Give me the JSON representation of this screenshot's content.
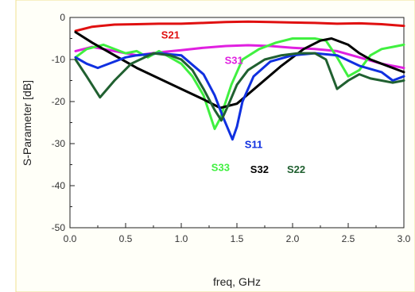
{
  "chart_data": {
    "type": "line",
    "xlabel": "freq, GHz",
    "ylabel": "S-Parameter [dB]",
    "xlim": [
      0,
      3.0
    ],
    "ylim": [
      -50,
      0
    ],
    "x_ticks": [
      0.0,
      0.5,
      1.0,
      1.5,
      2.0,
      2.5,
      3.0
    ],
    "x_tick_labels": [
      "0.0",
      "0.5",
      "1.0",
      "1.5",
      "2.0",
      "2.5",
      "3.0"
    ],
    "y_ticks": [
      0,
      -10,
      -20,
      -30,
      -40,
      -50
    ],
    "y_tick_labels": [
      "0",
      "-10",
      "-20",
      "-30",
      "-40",
      "-50"
    ],
    "grid": false,
    "legend": "inline labels",
    "series": [
      {
        "name": "S21",
        "color": "#e01010",
        "x": [
          0.05,
          0.2,
          0.4,
          0.6,
          0.8,
          1.0,
          1.2,
          1.4,
          1.6,
          1.8,
          2.0,
          2.2,
          2.4,
          2.6,
          2.8,
          3.0
        ],
        "y": [
          -3.2,
          -2.2,
          -1.7,
          -1.6,
          -1.5,
          -1.5,
          -1.3,
          -1.1,
          -1.0,
          -1.1,
          -1.2,
          -1.3,
          -1.5,
          -1.4,
          -1.6,
          -2.0
        ]
      },
      {
        "name": "S31",
        "color": "#e020e0",
        "x": [
          0.05,
          0.2,
          0.4,
          0.6,
          0.8,
          1.0,
          1.2,
          1.4,
          1.6,
          1.8,
          2.0,
          2.2,
          2.4,
          2.6,
          2.8,
          3.0
        ],
        "y": [
          -8.0,
          -7.0,
          -8.0,
          -9.0,
          -8.3,
          -7.8,
          -7.2,
          -6.8,
          -6.6,
          -6.8,
          -7.2,
          -7.5,
          -8.0,
          -9.5,
          -11.0,
          -12.0
        ]
      },
      {
        "name": "S33",
        "color": "#40f040",
        "x": [
          0.05,
          0.15,
          0.3,
          0.5,
          0.6,
          0.7,
          0.8,
          0.9,
          1.0,
          1.1,
          1.2,
          1.3,
          1.35,
          1.45,
          1.55,
          1.7,
          1.85,
          2.0,
          2.2,
          2.3,
          2.4,
          2.5,
          2.6,
          2.7,
          2.8,
          2.9,
          3.0
        ],
        "y": [
          -9.5,
          -7.5,
          -6.5,
          -8.5,
          -8.0,
          -9.5,
          -8.0,
          -9.5,
          -11.0,
          -14.0,
          -18.5,
          -26.5,
          -24.0,
          -16.0,
          -10.0,
          -7.5,
          -6.0,
          -5.0,
          -5.0,
          -5.5,
          -9.5,
          -14.0,
          -12.5,
          -9.0,
          -7.5,
          -7.0,
          -6.5
        ]
      },
      {
        "name": "S32",
        "color": "#000000",
        "x": [
          0.05,
          0.2,
          0.4,
          0.6,
          0.8,
          1.0,
          1.2,
          1.35,
          1.5,
          1.7,
          1.9,
          2.1,
          2.25,
          2.35,
          2.5,
          2.6,
          2.7,
          2.8,
          2.9,
          3.0
        ],
        "y": [
          -3.5,
          -6.0,
          -9.0,
          -12.0,
          -14.5,
          -17.0,
          -19.5,
          -21.5,
          -20.5,
          -16.0,
          -11.5,
          -7.5,
          -5.5,
          -5.0,
          -6.5,
          -8.5,
          -10.0,
          -11.0,
          -12.0,
          -13.0
        ]
      },
      {
        "name": "S11",
        "color": "#1030e0",
        "x": [
          0.05,
          0.15,
          0.25,
          0.4,
          0.5,
          0.6,
          0.8,
          1.0,
          1.2,
          1.3,
          1.38,
          1.46,
          1.5,
          1.55,
          1.65,
          1.8,
          2.0,
          2.2,
          2.4,
          2.6,
          2.8,
          2.9,
          3.0
        ],
        "y": [
          -9.5,
          -11.0,
          -12.0,
          -10.5,
          -9.5,
          -9.0,
          -8.5,
          -9.0,
          -13.5,
          -18.5,
          -24.0,
          -29.0,
          -26.0,
          -20.0,
          -14.0,
          -10.5,
          -9.0,
          -8.5,
          -9.0,
          -11.5,
          -13.0,
          -15.0,
          -14.0
        ]
      },
      {
        "name": "S22",
        "color": "#206030",
        "x": [
          0.05,
          0.15,
          0.27,
          0.4,
          0.55,
          0.75,
          0.9,
          1.0,
          1.1,
          1.2,
          1.3,
          1.36,
          1.42,
          1.5,
          1.6,
          1.75,
          1.9,
          2.05,
          2.2,
          2.3,
          2.4,
          2.5,
          2.6,
          2.7,
          2.8,
          2.9,
          3.0
        ],
        "y": [
          -10.0,
          -14.0,
          -19.0,
          -15.0,
          -11.0,
          -8.5,
          -9.0,
          -10.0,
          -12.5,
          -17.0,
          -22.0,
          -24.5,
          -21.0,
          -16.0,
          -12.5,
          -10.0,
          -9.0,
          -8.5,
          -8.5,
          -10.0,
          -17.0,
          -15.0,
          -13.5,
          -14.5,
          -15.0,
          -15.5,
          -15.0
        ]
      }
    ],
    "labels": [
      {
        "text": "S21",
        "x": 0.82,
        "y": -5.0,
        "color": "#e01010"
      },
      {
        "text": "S31",
        "x": 1.39,
        "y": -11.0,
        "color": "#e020e0"
      },
      {
        "text": "S33",
        "x": 1.27,
        "y": -36.5,
        "color": "#40f040"
      },
      {
        "text": "S32",
        "x": 1.62,
        "y": -37.0,
        "color": "#000000"
      },
      {
        "text": "S11",
        "x": 1.57,
        "y": -31.0,
        "color": "#1030e0"
      },
      {
        "text": "S22",
        "x": 1.95,
        "y": -37.0,
        "color": "#206030"
      }
    ]
  }
}
